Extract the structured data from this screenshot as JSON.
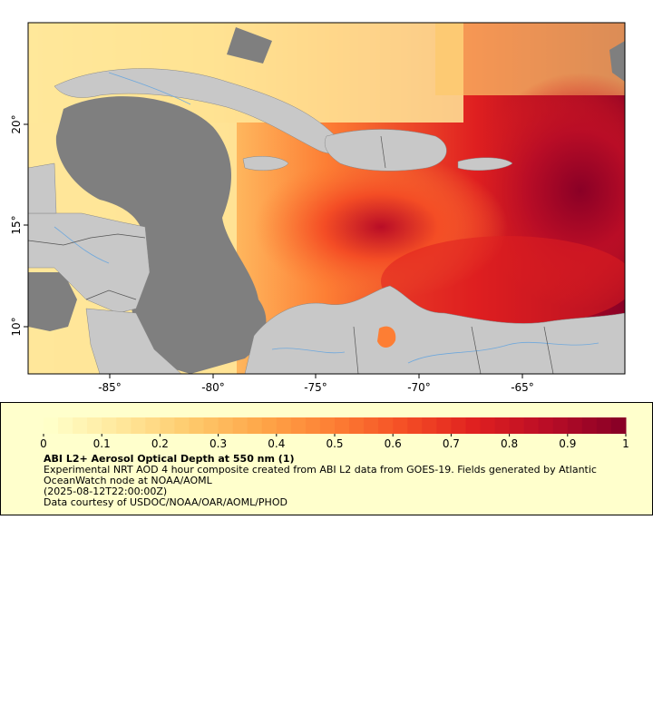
{
  "map": {
    "lon_ticks": [
      "-85°",
      "-80°",
      "-75°",
      "-70°",
      "-65°"
    ],
    "lat_ticks": [
      "10°",
      "15°",
      "20°"
    ],
    "colors": {
      "land": "#c8c8c8",
      "no_data": "#7f7f7f",
      "rivers": "#6fa8dc",
      "borders": "#555555"
    }
  },
  "colorbar": {
    "ticks": [
      "0",
      "0.1",
      "0.2",
      "0.3",
      "0.4",
      "0.5",
      "0.6",
      "0.7",
      "0.8",
      "0.9",
      "1"
    ],
    "min": 0,
    "max": 1,
    "palette": [
      "#ffffc8",
      "#ffe79a",
      "#fec96b",
      "#fea548",
      "#fd7e34",
      "#f44d25",
      "#df1f20",
      "#b90d26",
      "#8a0026"
    ]
  },
  "caption": {
    "title": "ABI L2+ Aerosol Optical Depth at 550 nm (1)",
    "line1": "Experimental NRT AOD 4 hour composite created from ABI L2 data from GOES-19. Fields generated by Atlantic OceanWatch node at NOAA/AOML",
    "line2": "(2025-08-12T22:00:00Z)",
    "line3": "Data courtesy of USDOC/NOAA/OAR/AOML/PHOD"
  }
}
